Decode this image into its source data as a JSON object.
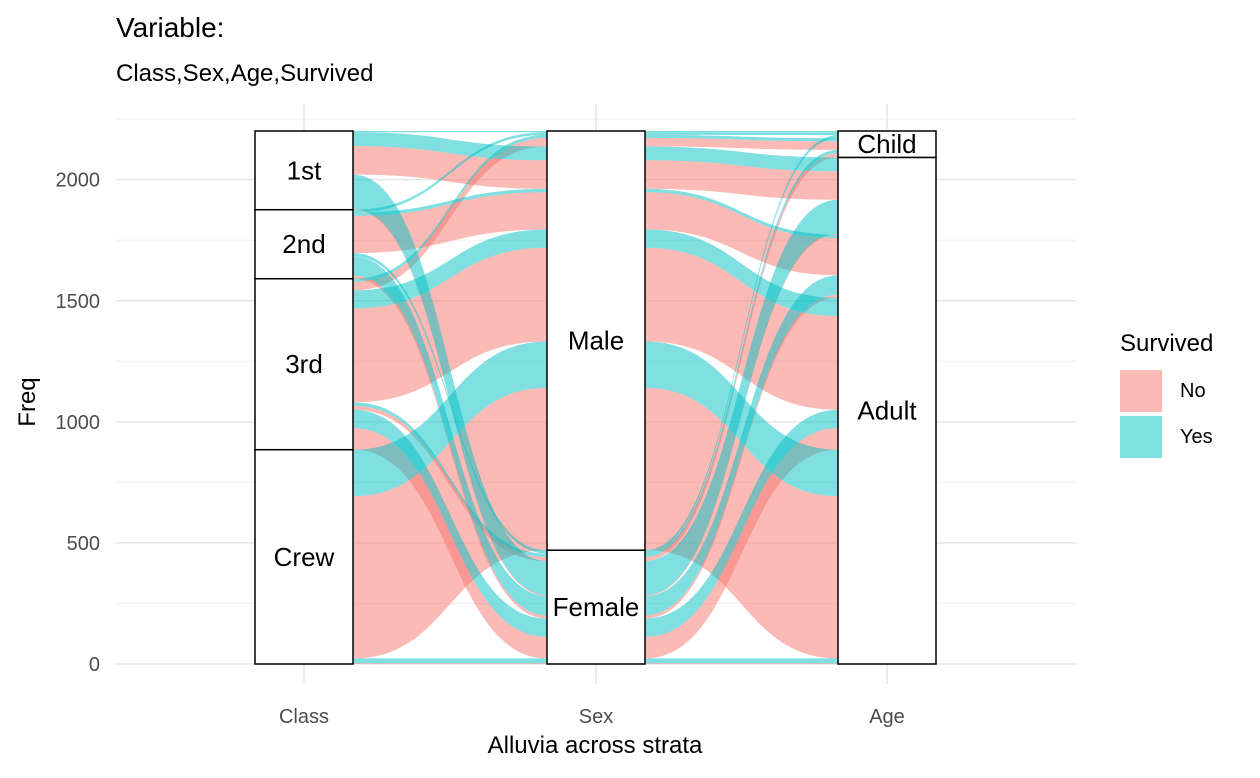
{
  "chart_data": {
    "type": "alluvial",
    "title": "Variable:",
    "subtitle": "Class,Sex,Age,Survived",
    "xlabel": "Alluvia across strata",
    "ylabel": "Freq",
    "ylim": [
      0,
      2201
    ],
    "yticks": [
      0,
      500,
      1000,
      1500,
      2000
    ],
    "axes": [
      "Class",
      "Sex",
      "Age"
    ],
    "strata": {
      "Class": [
        {
          "label": "Crew",
          "value": 885
        },
        {
          "label": "3rd",
          "value": 706
        },
        {
          "label": "2nd",
          "value": 285
        },
        {
          "label": "1st",
          "value": 325
        }
      ],
      "Sex": [
        {
          "label": "Female",
          "value": 470
        },
        {
          "label": "Male",
          "value": 1731
        }
      ],
      "Age": [
        {
          "label": "Adult",
          "value": 2092
        },
        {
          "label": "Child",
          "value": 109
        }
      ]
    },
    "legend": {
      "title": "Survived",
      "items": [
        {
          "label": "No",
          "color": "#F8766D"
        },
        {
          "label": "Yes",
          "color": "#00BFC4"
        }
      ]
    },
    "flows": [
      {
        "Class": "1st",
        "Sex": "Male",
        "Age": "Child",
        "Survived": "No",
        "value": 0
      },
      {
        "Class": "2nd",
        "Sex": "Male",
        "Age": "Child",
        "Survived": "No",
        "value": 0
      },
      {
        "Class": "3rd",
        "Sex": "Male",
        "Age": "Child",
        "Survived": "No",
        "value": 35
      },
      {
        "Class": "Crew",
        "Sex": "Male",
        "Age": "Child",
        "Survived": "No",
        "value": 0
      },
      {
        "Class": "1st",
        "Sex": "Female",
        "Age": "Child",
        "Survived": "No",
        "value": 0
      },
      {
        "Class": "2nd",
        "Sex": "Female",
        "Age": "Child",
        "Survived": "No",
        "value": 0
      },
      {
        "Class": "3rd",
        "Sex": "Female",
        "Age": "Child",
        "Survived": "No",
        "value": 17
      },
      {
        "Class": "Crew",
        "Sex": "Female",
        "Age": "Child",
        "Survived": "No",
        "value": 0
      },
      {
        "Class": "1st",
        "Sex": "Male",
        "Age": "Adult",
        "Survived": "No",
        "value": 118
      },
      {
        "Class": "2nd",
        "Sex": "Male",
        "Age": "Adult",
        "Survived": "No",
        "value": 154
      },
      {
        "Class": "3rd",
        "Sex": "Male",
        "Age": "Adult",
        "Survived": "No",
        "value": 387
      },
      {
        "Class": "Crew",
        "Sex": "Male",
        "Age": "Adult",
        "Survived": "No",
        "value": 670
      },
      {
        "Class": "1st",
        "Sex": "Female",
        "Age": "Adult",
        "Survived": "No",
        "value": 4
      },
      {
        "Class": "2nd",
        "Sex": "Female",
        "Age": "Adult",
        "Survived": "No",
        "value": 13
      },
      {
        "Class": "3rd",
        "Sex": "Female",
        "Age": "Adult",
        "Survived": "No",
        "value": 89
      },
      {
        "Class": "Crew",
        "Sex": "Female",
        "Age": "Adult",
        "Survived": "No",
        "value": 3
      },
      {
        "Class": "1st",
        "Sex": "Male",
        "Age": "Child",
        "Survived": "Yes",
        "value": 5
      },
      {
        "Class": "2nd",
        "Sex": "Male",
        "Age": "Child",
        "Survived": "Yes",
        "value": 11
      },
      {
        "Class": "3rd",
        "Sex": "Male",
        "Age": "Child",
        "Survived": "Yes",
        "value": 13
      },
      {
        "Class": "Crew",
        "Sex": "Male",
        "Age": "Child",
        "Survived": "Yes",
        "value": 0
      },
      {
        "Class": "1st",
        "Sex": "Female",
        "Age": "Child",
        "Survived": "Yes",
        "value": 1
      },
      {
        "Class": "2nd",
        "Sex": "Female",
        "Age": "Child",
        "Survived": "Yes",
        "value": 13
      },
      {
        "Class": "3rd",
        "Sex": "Female",
        "Age": "Child",
        "Survived": "Yes",
        "value": 14
      },
      {
        "Class": "Crew",
        "Sex": "Female",
        "Age": "Child",
        "Survived": "Yes",
        "value": 0
      },
      {
        "Class": "1st",
        "Sex": "Male",
        "Age": "Adult",
        "Survived": "Yes",
        "value": 57
      },
      {
        "Class": "2nd",
        "Sex": "Male",
        "Age": "Adult",
        "Survived": "Yes",
        "value": 14
      },
      {
        "Class": "3rd",
        "Sex": "Male",
        "Age": "Adult",
        "Survived": "Yes",
        "value": 75
      },
      {
        "Class": "Crew",
        "Sex": "Male",
        "Age": "Adult",
        "Survived": "Yes",
        "value": 192
      },
      {
        "Class": "1st",
        "Sex": "Female",
        "Age": "Adult",
        "Survived": "Yes",
        "value": 140
      },
      {
        "Class": "2nd",
        "Sex": "Female",
        "Age": "Adult",
        "Survived": "Yes",
        "value": 80
      },
      {
        "Class": "3rd",
        "Sex": "Female",
        "Age": "Adult",
        "Survived": "Yes",
        "value": 76
      },
      {
        "Class": "Crew",
        "Sex": "Female",
        "Age": "Adult",
        "Survived": "Yes",
        "value": 20
      }
    ]
  }
}
